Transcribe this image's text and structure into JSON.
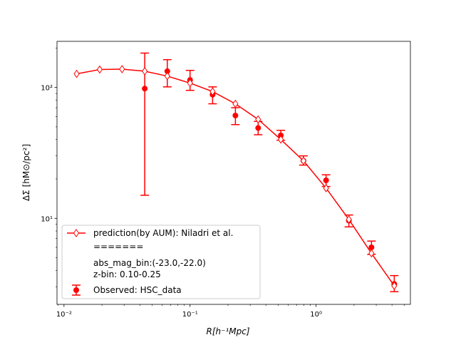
{
  "chart_data": {
    "type": "scatter",
    "xscale": "log",
    "yscale": "log",
    "xlim": [
      0.0088,
      5.6
    ],
    "ylim": [
      2.2,
      225
    ],
    "xlabel": "R[h⁻¹Mpc]",
    "ylabel": "ΔΣ [hM⊙/pc²]",
    "x_ticks": [
      {
        "value": 0.01,
        "label": "10⁻²"
      },
      {
        "value": 0.1,
        "label": "10⁻¹"
      },
      {
        "value": 1,
        "label": "10⁰"
      }
    ],
    "y_ticks": [
      {
        "value": 10,
        "label": "10¹"
      },
      {
        "value": 100,
        "label": "10²"
      }
    ],
    "grid": false,
    "legend_location": "lower-left",
    "series": [
      {
        "name": "prediction(by AUM): Niladri et al.",
        "style": "line-open-diamond",
        "color": "#ff0000",
        "x": [
          0.0126,
          0.0192,
          0.0289,
          0.0437,
          0.066,
          0.1,
          0.151,
          0.229,
          0.347,
          0.525,
          0.794,
          1.2,
          1.82,
          2.75,
          4.17
        ],
        "y": [
          127,
          137,
          138,
          133,
          122,
          108,
          93,
          75,
          57,
          40,
          27.5,
          17,
          9.8,
          5.4,
          3.05
        ]
      },
      {
        "name": "Observed: HSC_data",
        "style": "points-errorbars",
        "color": "#ff0000",
        "x": [
          0.0437,
          0.066,
          0.1,
          0.151,
          0.229,
          0.347,
          0.525,
          0.794,
          1.2,
          1.82,
          2.75,
          4.17
        ],
        "y": [
          98,
          133,
          114,
          88,
          61,
          49,
          43,
          27.5,
          19.5,
          9.6,
          6.0,
          3.15
        ],
        "y_lower": [
          15,
          101,
          95,
          75,
          52,
          43.5,
          39.5,
          25.5,
          17.5,
          8.6,
          5.3,
          2.75
        ],
        "y_upper": [
          183,
          163,
          135,
          101,
          70,
          55,
          47,
          30,
          21.5,
          10.6,
          6.7,
          3.65
        ]
      }
    ],
    "legend": {
      "entries": [
        {
          "label": "prediction(by AUM): Niladri et al.",
          "marker": "line-open-diamond"
        },
        {
          "label": "=======",
          "marker": "none"
        },
        {
          "label": "abs_mag_bin:(-23.0,-22.0)",
          "marker": "none"
        },
        {
          "label": "z-bin: 0.10-0.25",
          "marker": "none"
        },
        {
          "label": "Observed: HSC_data",
          "marker": "points-errorbars"
        }
      ]
    }
  }
}
